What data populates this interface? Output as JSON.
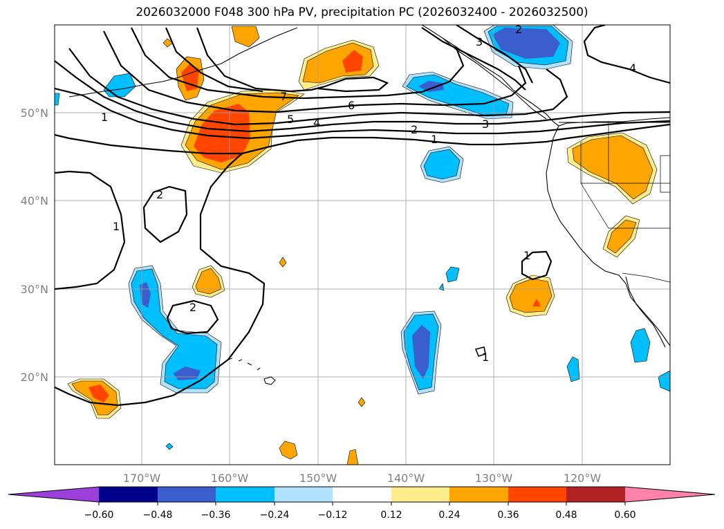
{
  "title": "2026032000 F048 300 hPa PV, precipitation PC (2026032400 - 2026032500)",
  "lon_ticks": [
    "170°W",
    "160°W",
    "150°W",
    "140°W",
    "130°W",
    "120°W"
  ],
  "lat_ticks": [
    "50°N",
    "40°N",
    "30°N",
    "20°N"
  ],
  "contour_labels": [
    "1",
    "2",
    "3",
    "4",
    "5",
    "6",
    "7",
    "2",
    "1",
    "2",
    "3",
    "4",
    "1",
    "2",
    "1",
    "1"
  ],
  "colorbar": {
    "ticks": [
      "−0.60",
      "−0.48",
      "−0.36",
      "−0.24",
      "−0.12",
      "0.12",
      "0.24",
      "0.36",
      "0.48",
      "0.60"
    ],
    "colors": {
      "under": "#9b40d8",
      "c1": "#00008b",
      "c2": "#3a5fcd",
      "c3": "#00bfff",
      "c4": "#b0e2ff",
      "c5": "#ffffff",
      "c6": "#ffec8b",
      "c7": "#ffa500",
      "c8": "#ff4500",
      "c9": "#b22222",
      "over": "#ff82ab"
    }
  }
}
